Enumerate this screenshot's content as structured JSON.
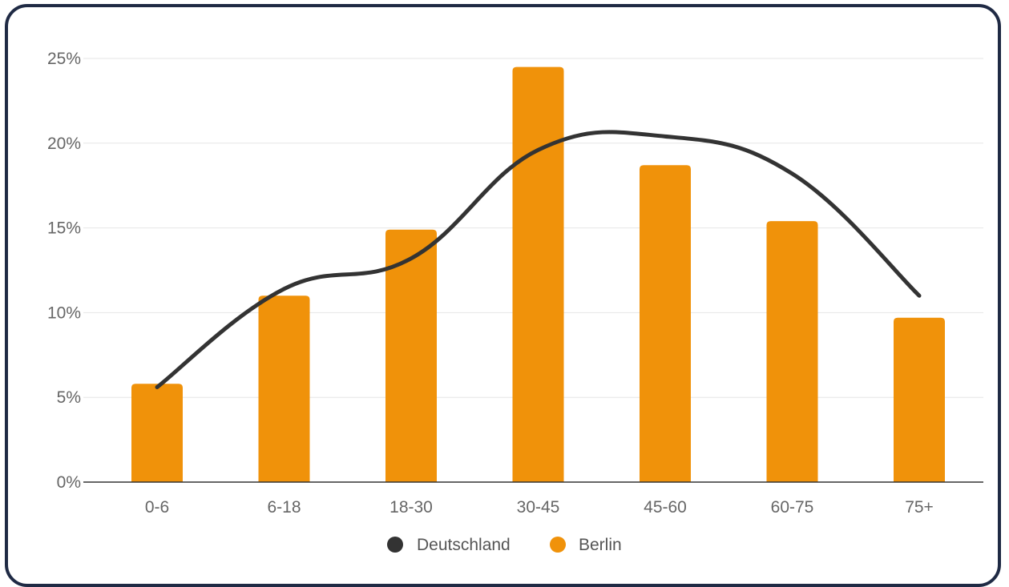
{
  "chart_data": {
    "type": "bar",
    "categories": [
      "0-6",
      "6-18",
      "18-30",
      "30-45",
      "45-60",
      "60-75",
      "75+"
    ],
    "series": [
      {
        "name": "Berlin",
        "type": "bar",
        "color": "#f0920a",
        "values": [
          5.8,
          11.0,
          14.9,
          24.5,
          18.7,
          15.4,
          9.7
        ]
      },
      {
        "name": "Deutschland",
        "type": "line",
        "color": "#333333",
        "values": [
          5.6,
          11.4,
          13.2,
          19.6,
          20.4,
          18.2,
          11.0
        ]
      }
    ],
    "y_tick_labels": [
      "0%",
      "5%",
      "10%",
      "15%",
      "20%",
      "25%"
    ],
    "ylim": [
      0,
      25
    ],
    "y_unit": "%",
    "grid": true,
    "legend_position": "bottom"
  }
}
